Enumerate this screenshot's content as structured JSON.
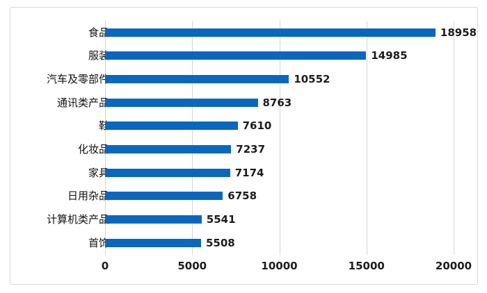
{
  "chart_data": {
    "type": "bar",
    "orientation": "horizontal",
    "title": "",
    "xlabel": "",
    "ylabel": "",
    "categories": [
      "食品",
      "服装",
      "汽车及零部件",
      "通讯类产品",
      "鞋",
      "化妆品",
      "家具",
      "日用杂品",
      "计算机类产品",
      "首饰"
    ],
    "values": [
      18958,
      14985,
      10552,
      8763,
      7610,
      7237,
      7174,
      6758,
      5541,
      5508
    ],
    "data_labels": [
      18958,
      14985,
      10552,
      8763,
      7610,
      7237,
      7174,
      6758,
      5541,
      5508
    ],
    "xlim": [
      0,
      20000
    ],
    "x_ticks": [
      0,
      5000,
      10000,
      15000,
      20000
    ],
    "x_tick_labels": [
      "0",
      "5000",
      "10000",
      "15000",
      "20000"
    ],
    "grid": true,
    "legend": false,
    "colors": {
      "bar": "#0a67be",
      "gridline": "#d6d6d6",
      "text": "#1c1c1c",
      "frame_border": "#d8d8d8",
      "background": "#ffffff"
    }
  }
}
